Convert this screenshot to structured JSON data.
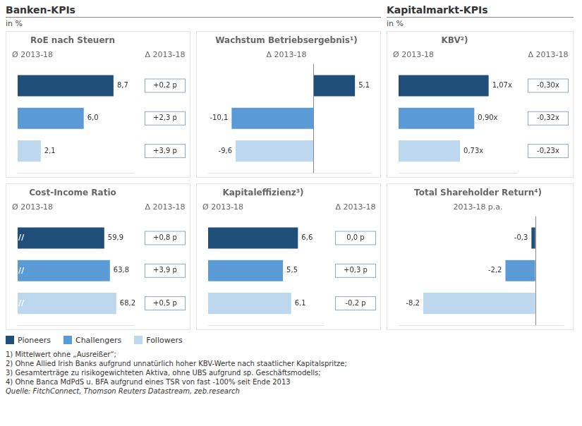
{
  "titles": [
    "Banken-KPIs",
    "Kapitalmarkt-KPIs"
  ],
  "subtitle": "in %",
  "annotations": [
    "1) Mittelwert ohne „Ausreißer“;",
    "2) Ohne Allied Irish Banks aufgrund unnatürlich hoher KBV-Werte nach staatlicher Kapitalspritze;",
    "3) Gesamterträge zu risikogewichteten Aktiva, ohne UBS aufgrund sp. Geschäftsmodells;",
    "4) Ohne Banca MdPdS u. BFA aufgrund eines TSR von fast -100% seit Ende 2013"
  ],
  "source": "Quelle: FitchConnect, Thomson Reuters Datastream, zeb.research",
  "chart_data": [
    {
      "type": "bar",
      "orientation": "horizontal",
      "title": "RoE nach Steuern",
      "subtitle": "Ø 2013-18",
      "categories": [
        null
      ],
      "series": [
        {
          "name": "Pioneers",
          "color": "#1f4e79",
          "values": [
            8.7
          ],
          "value_labels": [
            "8,7"
          ]
        },
        {
          "name": "Challengers",
          "color": "#5b9bd5",
          "values": [
            6.0
          ],
          "value_labels": [
            "6,0"
          ]
        },
        {
          "name": "Followers",
          "color": "#bdd7ee",
          "values": [
            2.1
          ],
          "value_labels": [
            "2,1"
          ]
        }
      ],
      "xlim": [
        0,
        10.5
      ],
      "xticks": [],
      "grid": false,
      "tick_labels": false,
      "data_labels": true,
      "annotations": [
        {
          "title": "Δ 2013-18",
          "labels": [
            "+0,2 p",
            "+2,3 p",
            "+3,9 p"
          ]
        }
      ]
    },
    {
      "type": "bar",
      "orientation": "horizontal",
      "title": "Wachstum Betriebsergebnis¹)",
      "subtitle": "Δ 2013-18",
      "categories": [
        null
      ],
      "series": [
        {
          "name": "Pioneers",
          "color": "#1f4e79",
          "values": [
            5.1
          ],
          "value_labels": [
            "5,1"
          ]
        },
        {
          "name": "Challengers",
          "color": "#5b9bd5",
          "values": [
            -10.1
          ],
          "value_labels": [
            "-10,1"
          ]
        },
        {
          "name": "Followers",
          "color": "#bdd7ee",
          "values": [
            -9.6
          ],
          "value_labels": [
            "-9,6"
          ]
        }
      ],
      "xlim": [
        -13,
        7
      ],
      "xticks": [
        0
      ],
      "grid": true,
      "tick_labels": false,
      "data_labels": true
    },
    {
      "type": "bar",
      "orientation": "horizontal",
      "title": "KBV²)",
      "subtitle": "Ø 2013-18",
      "categories": [
        null
      ],
      "series": [
        {
          "name": "Pioneers",
          "color": "#1f4e79",
          "values": [
            1.07
          ],
          "value_labels": [
            "1,07x"
          ]
        },
        {
          "name": "Challengers",
          "color": "#5b9bd5",
          "values": [
            0.9
          ],
          "value_labels": [
            "0,90x"
          ]
        },
        {
          "name": "Followers",
          "color": "#bdd7ee",
          "values": [
            0.73
          ],
          "value_labels": [
            "0,73x"
          ]
        }
      ],
      "xlim": [
        0,
        1.4
      ],
      "xticks": [],
      "grid": false,
      "tick_labels": false,
      "data_labels": true,
      "annotations": [
        {
          "title": "Δ 2013-18",
          "labels": [
            "-0,30x",
            "-0,32x",
            "-0,23x"
          ]
        }
      ]
    },
    {
      "type": "bar",
      "orientation": "horizontal",
      "title": "Cost-Income Ratio",
      "subtitle": "Ø 2013-18",
      "categories": [
        null
      ],
      "series": [
        {
          "name": "Pioneers",
          "color": "#1f4e79",
          "values": [
            59.9
          ],
          "value_labels": [
            "59,9"
          ]
        },
        {
          "name": "Challengers",
          "color": "#5b9bd5",
          "values": [
            63.8
          ],
          "value_labels": [
            "63,8"
          ]
        },
        {
          "name": "Followers",
          "color": "#bdd7ee",
          "values": [
            68.2
          ],
          "value_labels": [
            "68,2"
          ]
        }
      ],
      "xlim": [
        0,
        80
      ],
      "xticks": [],
      "grid": false,
      "tick_labels": false,
      "data_labels": true,
      "legend": "bottom",
      "annotations": [
        {
          "title": "Δ 2013-18",
          "labels": [
            "+0,8 p",
            "+3,9 p",
            "+0,5 p"
          ]
        },
        {
          "text": "//",
          "x": 2.5
        }
      ]
    },
    {
      "type": "bar",
      "orientation": "horizontal",
      "title": "Kapitaleffizienz³)",
      "subtitle": "Ø 2013-18",
      "categories": [
        null
      ],
      "series": [
        {
          "name": "Pioneers",
          "color": "#1f4e79",
          "values": [
            6.6
          ],
          "value_labels": [
            "6,6"
          ]
        },
        {
          "name": "Challengers",
          "color": "#5b9bd5",
          "values": [
            5.5
          ],
          "value_labels": [
            "5,5"
          ]
        },
        {
          "name": "Followers",
          "color": "#bdd7ee",
          "values": [
            6.1
          ],
          "value_labels": [
            "6,1"
          ]
        }
      ],
      "xlim": [
        0,
        8.5
      ],
      "xticks": [],
      "grid": false,
      "tick_labels": false,
      "data_labels": true,
      "annotations": [
        {
          "title": "Δ 2013-18",
          "labels": [
            "0,0 p",
            "+0,3 p",
            "-0,2 p"
          ]
        }
      ]
    },
    {
      "type": "bar",
      "orientation": "horizontal",
      "title": "Total Shareholder Return⁴)",
      "subtitle": "2013-18 p.a.",
      "categories": [
        null
      ],
      "series": [
        {
          "name": "Pioneers",
          "color": "#1f4e79",
          "values": [
            -0.3
          ],
          "value_labels": [
            "-0,3"
          ]
        },
        {
          "name": "Challengers",
          "color": "#5b9bd5",
          "values": [
            -2.2
          ],
          "value_labels": [
            "-2,2"
          ]
        },
        {
          "name": "Followers",
          "color": "#bdd7ee",
          "values": [
            -8.2
          ],
          "value_labels": [
            "-8,2"
          ]
        }
      ],
      "xlim": [
        -10,
        2
      ],
      "xticks": [
        0
      ],
      "grid": true,
      "tick_labels": false,
      "data_labels": true
    }
  ]
}
